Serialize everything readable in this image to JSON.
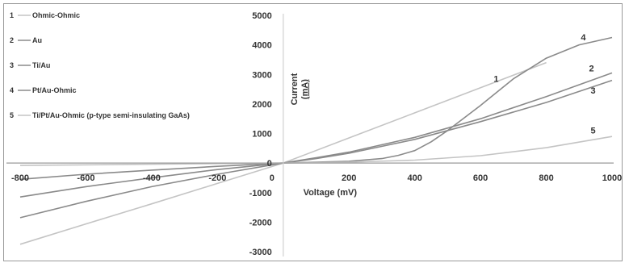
{
  "chart_data": {
    "type": "line",
    "title": "",
    "xlabel": "Voltage (mV)",
    "ylabel_line1": "Current",
    "ylabel_line2": "(mA)",
    "xlim": [
      -800,
      1000
    ],
    "ylim": [
      -3000,
      5000
    ],
    "x_ticks": [
      -800,
      -600,
      -400,
      -200,
      0,
      200,
      400,
      600,
      800,
      1000
    ],
    "y_ticks": [
      -3000,
      -2000,
      -1000,
      0,
      1000,
      2000,
      3000,
      4000,
      5000
    ],
    "grid": false,
    "legend_position": "top-left",
    "series": [
      {
        "name": "Ohmic-Ohmic",
        "number": "1",
        "color": "#c4c4c4",
        "label_at": [
          640,
          2750
        ],
        "points": [
          [
            -800,
            -2750
          ],
          [
            -600,
            -2060
          ],
          [
            -400,
            -1380
          ],
          [
            -200,
            -690
          ],
          [
            0,
            0
          ],
          [
            200,
            850
          ],
          [
            400,
            1700
          ],
          [
            600,
            2550
          ],
          [
            800,
            3400
          ]
        ]
      },
      {
        "name": "Au",
        "number": "2",
        "color": "#8a8a8a",
        "label_at": [
          930,
          3100
        ],
        "points": [
          [
            -800,
            -1150
          ],
          [
            -600,
            -800
          ],
          [
            -400,
            -500
          ],
          [
            -200,
            -220
          ],
          [
            0,
            0
          ],
          [
            100,
            180
          ],
          [
            200,
            370
          ],
          [
            400,
            870
          ],
          [
            600,
            1500
          ],
          [
            800,
            2250
          ],
          [
            1000,
            3050
          ]
        ]
      },
      {
        "name": "Ti/Au",
        "number": "3",
        "color": "#8a8a8a",
        "label_at": [
          935,
          2350
        ],
        "points": [
          [
            -800,
            -1850
          ],
          [
            -600,
            -1300
          ],
          [
            -400,
            -800
          ],
          [
            -200,
            -380
          ],
          [
            0,
            0
          ],
          [
            100,
            150
          ],
          [
            200,
            330
          ],
          [
            400,
            800
          ],
          [
            600,
            1400
          ],
          [
            800,
            2050
          ],
          [
            1000,
            2800
          ]
        ]
      },
      {
        "name": "Pt/Au-Ohmic",
        "number": "4",
        "color": "#8a8a8a",
        "label_at": [
          905,
          4150
        ],
        "points": [
          [
            -800,
            -550
          ],
          [
            -600,
            -380
          ],
          [
            -400,
            -240
          ],
          [
            -200,
            -110
          ],
          [
            0,
            0
          ],
          [
            200,
            60
          ],
          [
            300,
            150
          ],
          [
            350,
            260
          ],
          [
            400,
            420
          ],
          [
            450,
            720
          ],
          [
            500,
            1100
          ],
          [
            600,
            1950
          ],
          [
            700,
            2850
          ],
          [
            800,
            3550
          ],
          [
            900,
            4000
          ],
          [
            1000,
            4250
          ]
        ]
      },
      {
        "name": "Ti/Pt/Au-Ohmic (p-type semi-insulating GaAs)",
        "number": "5",
        "color": "#c4c4c4",
        "label_at": [
          935,
          1000
        ],
        "points": [
          [
            -800,
            -80
          ],
          [
            -400,
            -40
          ],
          [
            0,
            0
          ],
          [
            200,
            30
          ],
          [
            400,
            100
          ],
          [
            600,
            250
          ],
          [
            800,
            520
          ],
          [
            1000,
            900
          ]
        ]
      }
    ]
  }
}
